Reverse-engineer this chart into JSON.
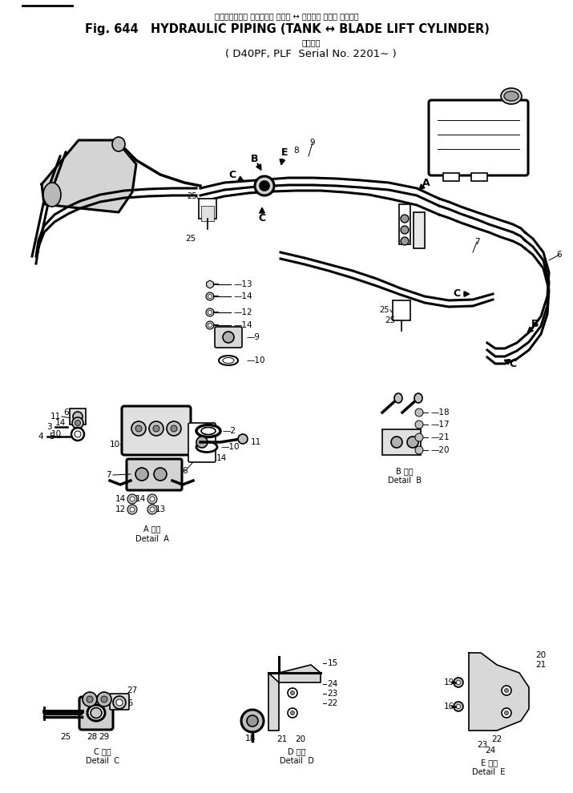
{
  "title_japanese": "ハイドロリック パイピング タンク ↔ ブレード リフト シリンダ",
  "title_main": "Fig. 644   HYDRAULIC PIPING (TANK ↔ BLADE LIFT CYLINDER)",
  "subtitle_japanese": "適用号機",
  "subtitle_model": "D40PF, PLF  Serial No. 2201∼",
  "bg_color": "#ffffff"
}
